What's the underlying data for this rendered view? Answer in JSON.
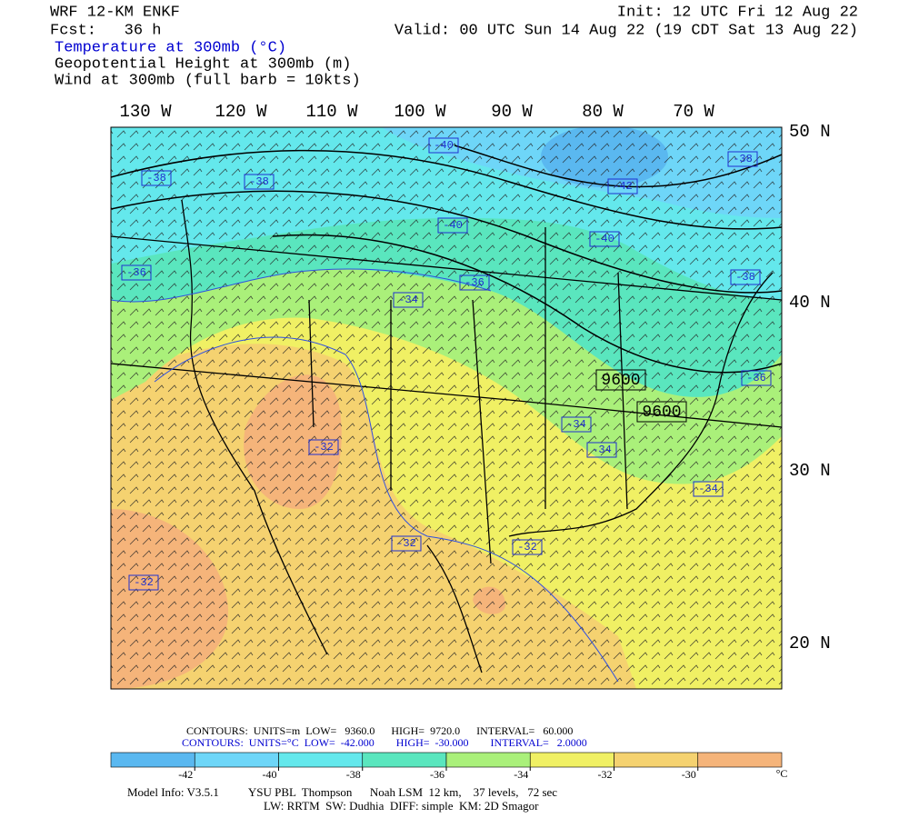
{
  "header": {
    "model": "WRF 12-KM ENKF",
    "forecast": "Fcst:   36 h",
    "init": "Init: 12 UTC Fri 12 Aug 22",
    "valid": "Valid: 00 UTC Sun 14 Aug 22 (19 CDT Sat 13 Aug 22)",
    "fields": [
      "Temperature at 300mb (°C)",
      "Geopotential Height at 300mb (m)",
      "Wind at 300mb (full barb = 10kts)"
    ]
  },
  "map": {
    "longitudes": [
      "130 W",
      "120 W",
      "110 W",
      "100 W",
      "90 W",
      "80 W",
      "70 W"
    ],
    "latitudes": [
      "50 N",
      "40 N",
      "30 N",
      "20 N"
    ],
    "temperature_labels": [
      "-40",
      "-38",
      "-38",
      "-42",
      "-40",
      "-40",
      "-36",
      "-36",
      "-34",
      "-38",
      "-38",
      "-32",
      "-34",
      "-34",
      "-34",
      "-36",
      "-32",
      "-32",
      "-32"
    ],
    "height_labels": [
      "9600",
      "9600"
    ]
  },
  "footer": {
    "height_contours": "CONTOURS:  UNITS=m  LOW=   9360.0      HIGH=  9720.0      INTERVAL=   60.000",
    "temperature_contours": "CONTOURS:  UNITS=°C  LOW=  -42.000        HIGH=  -30.000        INTERVAL=   2.0000",
    "model_info": "Model Info: V3.5.1          YSU PBL  Thompson      Noah LSM  12 km,    37 levels,   72 sec",
    "physics": "LW: RRTM  SW: Dudhia  DIFF: simple  KM: 2D Smagor"
  },
  "colorbar": {
    "ticks": [
      -42,
      -40,
      -38,
      -36,
      -34,
      -32,
      -30
    ],
    "unit": "°C",
    "colors": [
      "#5ab8f0",
      "#6ed6f8",
      "#64e8ec",
      "#5ae6be",
      "#aaf07a",
      "#f0f064",
      "#f5d270",
      "#f5b47a"
    ]
  }
}
